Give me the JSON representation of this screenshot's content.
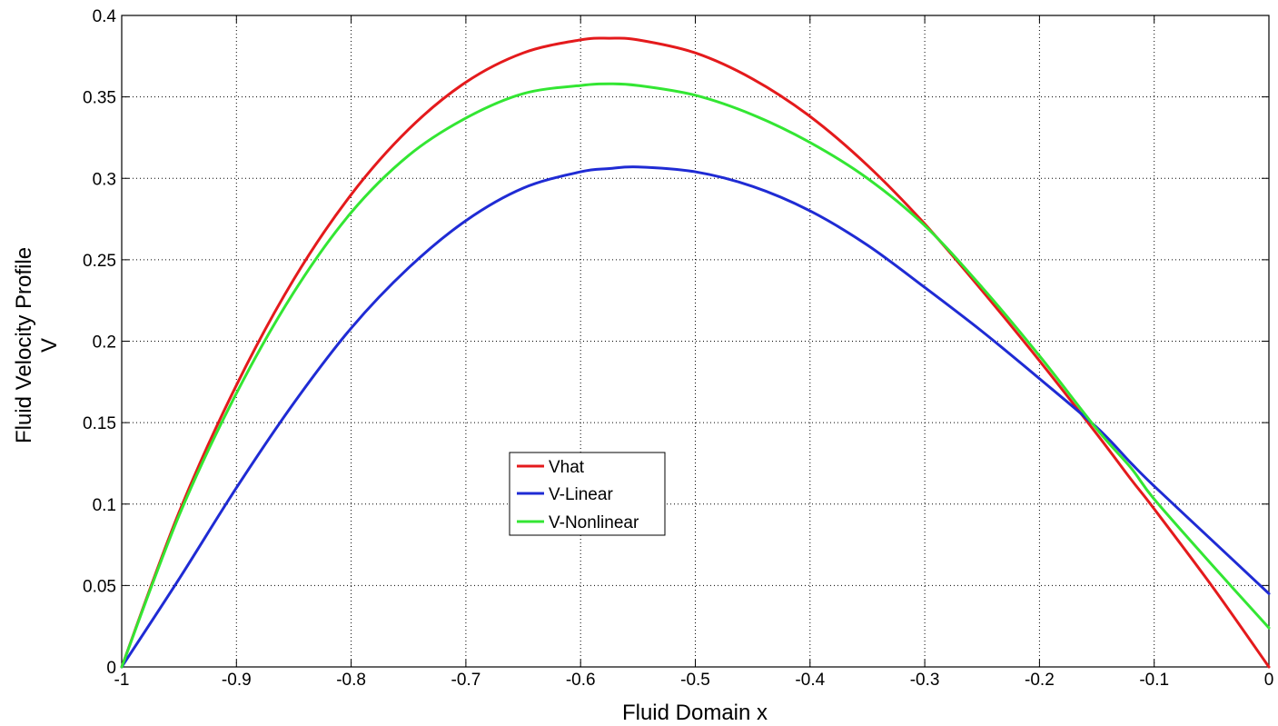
{
  "chart_data": {
    "type": "line",
    "xlabel": "Fluid Domain x",
    "ylabel_line1": "Fluid Velocity Profile",
    "ylabel_line2": "V",
    "xlim": [
      -1,
      0
    ],
    "ylim": [
      0,
      0.4
    ],
    "grid": true,
    "legend_position": "center-left",
    "x_ticks": [
      -1,
      -0.9,
      -0.8,
      -0.7,
      -0.6,
      -0.5,
      -0.4,
      -0.3,
      -0.2,
      -0.1,
      0
    ],
    "x_tick_labels": [
      "-1",
      "-0.9",
      "-0.8",
      "-0.7",
      "-0.6",
      "-0.5",
      "-0.4",
      "-0.3",
      "-0.2",
      "-0.1",
      "0"
    ],
    "y_ticks": [
      0,
      0.05,
      0.1,
      0.15,
      0.2,
      0.25,
      0.3,
      0.35,
      0.4
    ],
    "y_tick_labels": [
      "0",
      "0.05",
      "0.1",
      "0.15",
      "0.2",
      "0.25",
      "0.3",
      "0.35",
      "0.4"
    ],
    "x": [
      -1,
      -0.95,
      -0.9,
      -0.85,
      -0.8,
      -0.75,
      -0.7,
      -0.65,
      -0.6,
      -0.575,
      -0.55,
      -0.5,
      -0.45,
      -0.4,
      -0.35,
      -0.3,
      -0.25,
      -0.2,
      -0.15,
      -0.12,
      -0.1,
      -0.05,
      0
    ],
    "series": [
      {
        "name": "Vhat",
        "color": "#e41a1c",
        "values": [
          0,
          0.095,
          0.173,
          0.238,
          0.29,
          0.33,
          0.359,
          0.377,
          0.385,
          0.386,
          0.385,
          0.377,
          0.361,
          0.338,
          0.308,
          0.272,
          0.231,
          0.188,
          0.143,
          0.115,
          0.097,
          0.05,
          0
        ]
      },
      {
        "name": "V-Linear",
        "color": "#1f2bd4",
        "values": [
          0,
          0.054,
          0.11,
          0.162,
          0.208,
          0.245,
          0.274,
          0.294,
          0.304,
          0.306,
          0.307,
          0.304,
          0.295,
          0.28,
          0.259,
          0.233,
          0.206,
          0.177,
          0.147,
          0.125,
          0.111,
          0.078,
          0.045
        ]
      },
      {
        "name": "V-Nonlinear",
        "color": "#33e633",
        "values": [
          0,
          0.093,
          0.168,
          0.23,
          0.279,
          0.314,
          0.337,
          0.352,
          0.357,
          0.358,
          0.357,
          0.351,
          0.339,
          0.322,
          0.3,
          0.271,
          0.233,
          0.191,
          0.146,
          0.122,
          0.103,
          0.063,
          0.024
        ]
      }
    ]
  }
}
